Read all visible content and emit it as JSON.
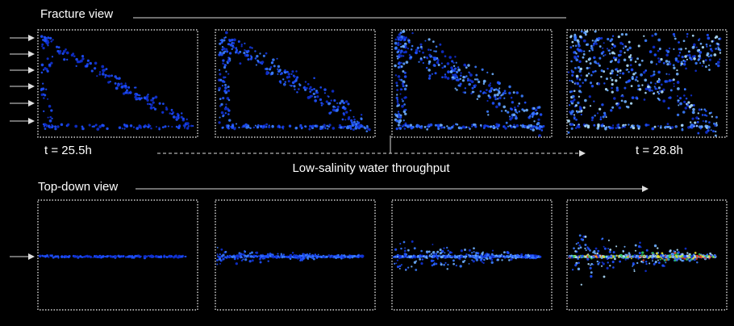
{
  "fracture_view": {
    "title": "Fracture view",
    "start_time": "t = 25.5h",
    "end_time": "t = 28.8h"
  },
  "throughput_label": "Low-salinity water throughput",
  "top_down_view": {
    "title": "Top-down view"
  }
}
